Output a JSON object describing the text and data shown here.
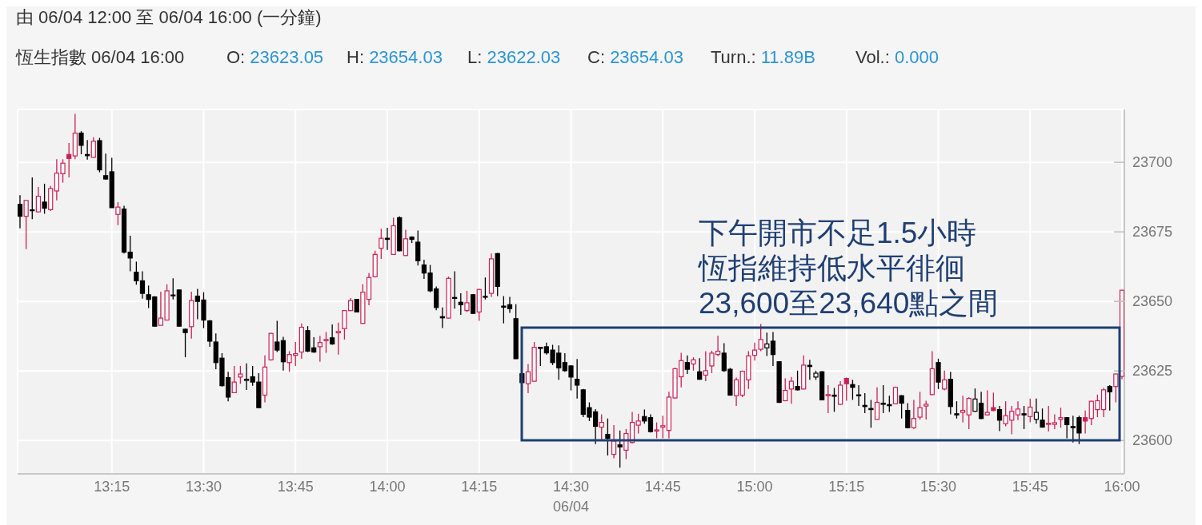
{
  "chart_data": {
    "type": "candlestick",
    "title": "由 06/04 12:00 至 06/04 16:00 (一分鐘)",
    "subtitle": "恆生指數 06/04 16:00",
    "xlabel": "06/04",
    "annotations": [
      "下午開市不足1.5小時恆指維持低水平徘徊23,600至23,640點之間",
      "O: 23623.05",
      "H: 23654.03",
      "L: 23622.03",
      "C: 23654.03",
      "Turn.: 11.89B",
      "Vol.: 0.000"
    ],
    "x": [
      13.0,
      13.0167,
      13.0333,
      13.05,
      13.0667,
      13.0833,
      13.1,
      13.1167,
      13.1333,
      13.15,
      13.1667,
      13.1833,
      13.2,
      13.2167,
      13.2333,
      13.25,
      13.2667,
      13.2833,
      13.3,
      13.3167,
      13.3333,
      13.35,
      13.3667,
      13.3833,
      13.4,
      13.4167,
      13.4333,
      13.45,
      13.4667,
      13.4833,
      13.5,
      13.5167,
      13.5333,
      13.55,
      13.5667,
      13.5833,
      13.6,
      13.6167,
      13.6333,
      13.65,
      13.6667,
      13.6833,
      13.7,
      13.7167,
      13.7333,
      13.75,
      13.7667,
      13.7833,
      13.8,
      13.8167,
      13.8333,
      13.85,
      13.8667,
      13.8833,
      13.9,
      13.9167,
      13.9333,
      13.95,
      13.9667,
      13.9833,
      14.0,
      14.0167,
      14.0333,
      14.05,
      14.0667,
      14.0833,
      14.1,
      14.1167,
      14.1333,
      14.15,
      14.1667,
      14.1833,
      14.2,
      14.2167,
      14.2333,
      14.25,
      14.2667,
      14.2833,
      14.3,
      14.3167,
      14.3333,
      14.35,
      14.3667,
      14.3833,
      14.4,
      14.4167,
      14.4333,
      14.45,
      14.4667,
      14.4833,
      14.5,
      14.5167,
      14.5333,
      14.55,
      14.5667,
      14.5833,
      14.6,
      14.6167,
      14.6333,
      14.65,
      14.6667,
      14.6833,
      14.7,
      14.7167,
      14.7333,
      14.75,
      14.7667,
      14.7833,
      14.8,
      14.8167,
      14.8333,
      14.85,
      14.8667,
      14.8833,
      14.9,
      14.9167,
      14.9333,
      14.95,
      14.9667,
      14.9833,
      15.0,
      15.0167,
      15.0333,
      15.05,
      15.0667,
      15.0833,
      15.1,
      15.1167,
      15.1333,
      15.15,
      15.1667,
      15.1833,
      15.2,
      15.2167,
      15.2333,
      15.25,
      15.2667,
      15.2833,
      15.3,
      15.3167,
      15.3333,
      15.35,
      15.3667,
      15.3833,
      15.4,
      15.4167,
      15.4333,
      15.45,
      15.4667,
      15.4833,
      15.5,
      15.5167,
      15.5333,
      15.55,
      15.5667,
      15.5833,
      15.6,
      15.6167,
      15.6333,
      15.65,
      15.6667,
      15.6833,
      15.7,
      15.7167,
      15.7333,
      15.75,
      15.7667,
      15.7833,
      15.8,
      15.8167,
      15.8333,
      15.85,
      15.8667,
      15.8833,
      15.9,
      15.9167,
      15.9333,
      15.95,
      15.9667,
      15.9833,
      16.0
    ],
    "ohlc": [
      [
        23684.9,
        23688.2,
        23676.3,
        23680.6
      ],
      [
        23680.6,
        23686.3,
        23668.8,
        23686.3
      ],
      [
        23682.9,
        23694.6,
        23679.6,
        23682.7
      ],
      [
        23682.2,
        23691.1,
        23682.0,
        23687.8
      ],
      [
        23685.7,
        23692.3,
        23681.5,
        23683.5
      ],
      [
        23683.0,
        23691.6,
        23682.5,
        23690.6
      ],
      [
        23689.7,
        23701.1,
        23686.3,
        23696.1
      ],
      [
        23695.9,
        23701.1,
        23692.7,
        23699.7
      ],
      [
        23702.8,
        23706.9,
        23694.6,
        23701.4
      ],
      [
        23702.3,
        23717.4,
        23701.1,
        23710.5
      ],
      [
        23710.5,
        23711.2,
        23702.9,
        23706.1
      ],
      [
        23702.8,
        23708.0,
        23701.0,
        23702.4
      ],
      [
        23701.8,
        23709.0,
        23701.6,
        23707.6
      ],
      [
        23707.8,
        23708.8,
        23696.4,
        23697.3
      ],
      [
        23695.2,
        23703.1,
        23693.7,
        23694.0
      ],
      [
        23696.6,
        23701.6,
        23683.7,
        23683.7
      ],
      [
        23681.3,
        23685.7,
        23677.4,
        23683.9
      ],
      [
        23683.2,
        23684.4,
        23667.2,
        23667.7
      ],
      [
        23667.7,
        23673.6,
        23660.8,
        23665.6
      ],
      [
        23660.5,
        23664.3,
        23656.0,
        23657.4
      ],
      [
        23657.4,
        23660.8,
        23651.0,
        23652.9
      ],
      [
        23652.4,
        23655.7,
        23647.6,
        23650.7
      ],
      [
        23651.6,
        23651.9,
        23640.9,
        23641.1
      ],
      [
        23641.4,
        23653.5,
        23641.4,
        23644.0
      ],
      [
        23643.3,
        23656.2,
        23643.3,
        23653.8
      ],
      [
        23652.3,
        23658.3,
        23650.7,
        23652.1
      ],
      [
        23654.1,
        23654.3,
        23640.9,
        23641.1
      ],
      [
        23640.0,
        23640.2,
        23629.9,
        23638.8
      ],
      [
        23640.9,
        23653.5,
        23636.6,
        23650.3
      ],
      [
        23651.9,
        23654.5,
        23643.6,
        23650.0
      ],
      [
        23650.5,
        23653.3,
        23640.4,
        23643.3
      ],
      [
        23643.0,
        23643.3,
        23633.7,
        23635.7
      ],
      [
        23635.4,
        23638.5,
        23625.6,
        23628.0
      ],
      [
        23629.6,
        23631.4,
        23619.4,
        23619.7
      ],
      [
        23622.6,
        23624.7,
        23614.1,
        23615.6
      ],
      [
        23617.2,
        23626.8,
        23617.2,
        23621.0
      ],
      [
        23622.8,
        23626.8,
        23620.4,
        23623.9
      ],
      [
        23621.6,
        23627.7,
        23618.2,
        23622.0
      ],
      [
        23622.9,
        23626.8,
        23619.7,
        23621.0
      ],
      [
        23621.0,
        23624.2,
        23611.8,
        23611.8
      ],
      [
        23616.3,
        23630.6,
        23613.7,
        23626.4
      ],
      [
        23629.0,
        23638.7,
        23628.7,
        23638.5
      ],
      [
        23635.4,
        23643.0,
        23631.8,
        23632.5
      ],
      [
        23635.9,
        23637.3,
        23625.1,
        23628.3
      ],
      [
        23628.0,
        23632.1,
        23624.7,
        23630.9
      ],
      [
        23630.6,
        23635.4,
        23626.8,
        23631.2
      ],
      [
        23631.8,
        23642.1,
        23629.4,
        23640.7
      ],
      [
        23639.5,
        23641.1,
        23631.8,
        23632.1
      ],
      [
        23633.3,
        23637.1,
        23631.5,
        23631.8
      ],
      [
        23633.7,
        23637.6,
        23628.3,
        23635.2
      ],
      [
        23635.9,
        23639.0,
        23631.5,
        23636.3
      ],
      [
        23636.9,
        23641.7,
        23634.4,
        23634.7
      ],
      [
        23638.7,
        23642.4,
        23630.9,
        23639.2
      ],
      [
        23640.2,
        23646.8,
        23636.3,
        23646.7
      ],
      [
        23646.7,
        23651.2,
        23646.5,
        23650.3
      ],
      [
        23650.7,
        23650.9,
        23646.0,
        23646.2
      ],
      [
        23642.1,
        23656.2,
        23641.9,
        23653.3
      ],
      [
        23650.7,
        23660.2,
        23648.6,
        23658.6
      ],
      [
        23658.9,
        23668.2,
        23658.6,
        23666.9
      ],
      [
        23669.1,
        23676.1,
        23665.3,
        23672.7
      ],
      [
        23672.7,
        23676.5,
        23668.5,
        23672.3
      ],
      [
        23666.9,
        23680.1,
        23666.7,
        23677.2
      ],
      [
        23680.1,
        23680.6,
        23668.0,
        23668.2
      ],
      [
        23666.5,
        23675.8,
        23666.3,
        23672.5
      ],
      [
        23673.1,
        23673.4,
        23671.0,
        23672.3
      ],
      [
        23671.3,
        23675.5,
        23662.9,
        23664.6
      ],
      [
        23663.1,
        23665.0,
        23658.1,
        23660.2
      ],
      [
        23660.2,
        23663.1,
        23653.3,
        23653.8
      ],
      [
        23654.5,
        23655.4,
        23646.8,
        23647.8
      ],
      [
        23644.5,
        23647.8,
        23640.4,
        23644.1
      ],
      [
        23644.0,
        23658.9,
        23643.8,
        23658.3
      ],
      [
        23651.4,
        23660.8,
        23647.4,
        23651.1
      ],
      [
        23649.7,
        23652.9,
        23645.2,
        23648.8
      ],
      [
        23646.7,
        23653.8,
        23646.2,
        23649.5
      ],
      [
        23652.4,
        23652.6,
        23645.5,
        23645.7
      ],
      [
        23646.2,
        23654.5,
        23643.0,
        23654.3
      ],
      [
        23651.8,
        23658.6,
        23650.7,
        23651.5
      ],
      [
        23652.9,
        23667.2,
        23651.6,
        23665.3
      ],
      [
        23667.2,
        23667.4,
        23651.9,
        23655.4
      ],
      [
        23648.3,
        23651.9,
        23642.1,
        23647.9
      ],
      [
        23648.8,
        23651.6,
        23645.9,
        23647.4
      ],
      [
        23643.8,
        23649.0,
        23629.3,
        23629.4
      ],
      [
        23624.0,
        23624.7,
        23619.9,
        23620.8
      ],
      [
        23620.4,
        23627.5,
        23617.0,
        23624.7
      ],
      [
        23621.3,
        23635.4,
        23621.0,
        23633.5
      ],
      [
        23633.5,
        23633.7,
        23626.8,
        23633.1
      ],
      [
        23633.7,
        23635.2,
        23630.9,
        23631.5
      ],
      [
        23632.5,
        23634.4,
        23627.1,
        23628.0
      ],
      [
        23631.4,
        23634.2,
        23621.8,
        23626.1
      ],
      [
        23628.0,
        23631.4,
        23624.7,
        23625.1
      ],
      [
        23626.8,
        23627.1,
        23618.0,
        23622.8
      ],
      [
        23622.0,
        23629.3,
        23615.1,
        23619.9
      ],
      [
        23618.2,
        23618.5,
        23608.4,
        23609.4
      ],
      [
        23611.8,
        23613.7,
        23607.0,
        23608.4
      ],
      [
        23610.3,
        23611.3,
        23598.7,
        23605.1
      ],
      [
        23604.8,
        23609.4,
        23600.3,
        23606.5
      ],
      [
        23602.2,
        23607.9,
        23594.6,
        23600.8
      ],
      [
        23595.0,
        23605.5,
        23593.6,
        23599.8
      ],
      [
        23598.4,
        23603.6,
        23590.2,
        23597.7
      ],
      [
        23596.5,
        23604.1,
        23593.3,
        23602.5
      ],
      [
        23599.3,
        23610.3,
        23598.9,
        23606.5
      ],
      [
        23605.5,
        23609.6,
        23602.5,
        23607.0
      ],
      [
        23608.6,
        23611.1,
        23606.0,
        23607.0
      ],
      [
        23608.2,
        23609.4,
        23602.9,
        23603.2
      ],
      [
        23603.4,
        23606.5,
        23600.8,
        23603.8
      ],
      [
        23604.8,
        23608.9,
        23600.8,
        23605.3
      ],
      [
        23603.6,
        23617.5,
        23600.8,
        23615.6
      ],
      [
        23615.3,
        23626.1,
        23615.1,
        23625.8
      ],
      [
        23622.9,
        23631.5,
        23619.1,
        23628.7
      ],
      [
        23628.0,
        23630.6,
        23623.9,
        23625.6
      ],
      [
        23627.5,
        23629.9,
        23625.1,
        23629.0
      ],
      [
        23624.7,
        23629.6,
        23621.8,
        23622.0
      ],
      [
        23623.5,
        23632.1,
        23621.3,
        23625.1
      ],
      [
        23626.8,
        23632.3,
        23624.2,
        23631.4
      ],
      [
        23630.9,
        23637.6,
        23630.4,
        23632.1
      ],
      [
        23631.4,
        23635.0,
        23624.7,
        23625.1
      ],
      [
        23625.6,
        23626.1,
        23616.1,
        23616.3
      ],
      [
        23616.1,
        23622.6,
        23612.4,
        23621.8
      ],
      [
        23616.3,
        23625.1,
        23615.6,
        23624.9
      ],
      [
        23621.8,
        23632.1,
        23618.5,
        23630.4
      ],
      [
        23630.6,
        23635.2,
        23628.7,
        23632.5
      ],
      [
        23632.8,
        23641.9,
        23632.1,
        23636.3
      ],
      [
        23633.3,
        23638.8,
        23630.4,
        23634.7
      ],
      [
        23635.7,
        23639.0,
        23626.8,
        23630.9
      ],
      [
        23628.3,
        23628.5,
        23613.5,
        23613.7
      ],
      [
        23614.3,
        23622.3,
        23614.1,
        23618.0
      ],
      [
        23618.5,
        23622.8,
        23613.2,
        23621.3
      ],
      [
        23619.4,
        23625.1,
        23618.0,
        23618.2
      ],
      [
        23618.5,
        23630.6,
        23618.3,
        23627.1
      ],
      [
        23627.0,
        23629.0,
        23621.8,
        23626.6
      ],
      [
        23622.8,
        23625.1,
        23621.8,
        23624.2
      ],
      [
        23624.7,
        23624.9,
        23614.4,
        23614.6
      ],
      [
        23616.1,
        23619.9,
        23609.8,
        23616.5
      ],
      [
        23616.3,
        23618.9,
        23610.3,
        23615.9
      ],
      [
        23613.0,
        23621.3,
        23612.8,
        23619.9
      ],
      [
        23622.3,
        23622.6,
        23614.3,
        23620.4
      ],
      [
        23620.1,
        23621.8,
        23614.6,
        23619.1
      ],
      [
        23616.4,
        23619.9,
        23612.4,
        23616.1
      ],
      [
        23612.6,
        23617.0,
        23609.8,
        23612.2
      ],
      [
        23611.5,
        23614.6,
        23604.6,
        23611.1
      ],
      [
        23607.6,
        23619.1,
        23607.5,
        23613.7
      ],
      [
        23613.4,
        23619.9,
        23609.8,
        23613.0
      ],
      [
        23612.9,
        23616.1,
        23610.3,
        23612.5
      ],
      [
        23613.2,
        23619.4,
        23613.0,
        23619.1
      ],
      [
        23616.1,
        23616.3,
        23607.9,
        23613.4
      ],
      [
        23610.8,
        23613.4,
        23604.4,
        23604.6
      ],
      [
        23604.6,
        23614.6,
        23604.1,
        23607.9
      ],
      [
        23608.4,
        23617.5,
        23607.5,
        23611.8
      ],
      [
        23612.4,
        23614.3,
        23607.5,
        23613.0
      ],
      [
        23616.5,
        23632.1,
        23616.3,
        23625.8
      ],
      [
        23628.0,
        23629.4,
        23618.5,
        23621.0
      ],
      [
        23618.5,
        23625.1,
        23618.0,
        23621.8
      ],
      [
        23622.0,
        23624.7,
        23609.4,
        23612.2
      ],
      [
        23609.6,
        23614.1,
        23607.9,
        23609.2
      ],
      [
        23610.1,
        23616.1,
        23606.5,
        23610.8
      ],
      [
        23609.2,
        23615.6,
        23604.1,
        23615.1
      ],
      [
        23610.5,
        23618.7,
        23610.3,
        23614.9
      ],
      [
        23613.4,
        23617.5,
        23607.7,
        23607.9
      ],
      [
        23609.2,
        23618.0,
        23608.9,
        23610.1
      ],
      [
        23611.8,
        23617.2,
        23610.5,
        23610.8
      ],
      [
        23611.1,
        23612.4,
        23603.4,
        23607.3
      ],
      [
        23606.0,
        23614.1,
        23605.1,
        23608.9
      ],
      [
        23607.3,
        23612.4,
        23602.2,
        23610.5
      ],
      [
        23609.2,
        23614.1,
        23607.3,
        23611.3
      ],
      [
        23609.6,
        23612.4,
        23604.1,
        23609.2
      ],
      [
        23608.6,
        23615.1,
        23606.5,
        23612.0
      ],
      [
        23607.6,
        23615.1,
        23606.0,
        23610.1
      ],
      [
        23607.3,
        23611.5,
        23604.6,
        23604.8
      ],
      [
        23605.8,
        23612.4,
        23603.2,
        23606.2
      ],
      [
        23605.8,
        23609.4,
        23604.1,
        23606.4
      ],
      [
        23607.6,
        23611.8,
        23604.6,
        23608.2
      ],
      [
        23608.2,
        23608.4,
        23600.8,
        23605.7
      ],
      [
        23605.0,
        23608.9,
        23599.3,
        23604.6
      ],
      [
        23608.2,
        23608.9,
        23598.7,
        23602.7
      ],
      [
        23608.2,
        23610.8,
        23602.5,
        23607.0
      ],
      [
        23607.9,
        23614.3,
        23605.5,
        23614.1
      ],
      [
        23611.1,
        23616.5,
        23608.4,
        23614.3
      ],
      [
        23611.1,
        23618.9,
        23608.4,
        23618.2
      ],
      [
        23619.4,
        23619.9,
        23610.8,
        23617.5
      ],
      [
        23619.4,
        23624.1,
        23613.7,
        23623.9
      ],
      [
        23623.05,
        23654.03,
        23622.03,
        23654.03
      ]
    ],
    "colors": [
      "#000000",
      "#cc1f55",
      "#000000",
      "#cc1f55",
      "#000000",
      "#cc1f55",
      "#cc1f55",
      "#cc1f55",
      "#cc1f55",
      "#cc1f55",
      "#000000",
      "#000000",
      "#cc1f55",
      "#000000",
      "#000000",
      "#000000",
      "#cc1f55",
      "#000000",
      "#000000",
      "#000000",
      "#000000",
      "#000000",
      "#000000",
      "#cc1f55",
      "#cc1f55",
      "#000000",
      "#000000",
      "#000000",
      "#cc1f55",
      "#000000",
      "#000000",
      "#000000",
      "#000000",
      "#000000",
      "#000000",
      "#cc1f55",
      "#cc1f55",
      "#000000",
      "#000000",
      "#000000",
      "#cc1f55",
      "#cc1f55",
      "#000000",
      "#000000",
      "#cc1f55",
      "#cc1f55",
      "#cc1f55",
      "#000000",
      "#000000",
      "#cc1f55",
      "#cc1f55",
      "#000000",
      "#cc1f55",
      "#cc1f55",
      "#cc1f55",
      "#000000",
      "#cc1f55",
      "#cc1f55",
      "#cc1f55",
      "#cc1f55",
      "#000000",
      "#cc1f55",
      "#000000",
      "#cc1f55",
      "#000000",
      "#000000",
      "#000000",
      "#000000",
      "#000000",
      "#000000",
      "#cc1f55",
      "#000000",
      "#000000",
      "#cc1f55",
      "#000000",
      "#cc1f55",
      "#000000",
      "#cc1f55",
      "#000000",
      "#000000",
      "#000000",
      "#000000",
      "#000000",
      "#cc1f55",
      "#cc1f55",
      "#000000",
      "#000000",
      "#000000",
      "#000000",
      "#000000",
      "#000000",
      "#000000",
      "#000000",
      "#000000",
      "#000000",
      "#cc1f55",
      "#000000",
      "#cc1f55",
      "#000000",
      "#cc1f55",
      "#cc1f55",
      "#cc1f55",
      "#000000",
      "#000000",
      "#cc1f55",
      "#cc1f55",
      "#cc1f55",
      "#cc1f55",
      "#cc1f55",
      "#000000",
      "#cc1f55",
      "#000000",
      "#cc1f55",
      "#cc1f55",
      "#cc1f55",
      "#000000",
      "#000000",
      "#cc1f55",
      "#cc1f55",
      "#cc1f55",
      "#cc1f55",
      "#cc1f55",
      "#000000",
      "#000000",
      "#000000",
      "#cc1f55",
      "#cc1f55",
      "#000000",
      "#cc1f55",
      "#000000",
      "#000000",
      "#000000",
      "#cc1f55",
      "#000000",
      "#cc1f55",
      "#cc1f55",
      "#000000",
      "#000000",
      "#000000",
      "#000000",
      "#cc1f55",
      "#000000",
      "#000000",
      "#cc1f55",
      "#000000",
      "#000000",
      "#cc1f55",
      "#cc1f55",
      "#cc1f55",
      "#cc1f55",
      "#000000",
      "#cc1f55",
      "#000000",
      "#000000",
      "#cc1f55",
      "#cc1f55",
      "#000000",
      "#000000",
      "#cc1f55",
      "#cc1f55",
      "#000000",
      "#cc1f55",
      "#cc1f55",
      "#cc1f55",
      "#000000",
      "#cc1f55",
      "#000000",
      "#000000",
      "#cc1f55",
      "#cc1f55",
      "#cc1f55",
      "#000000",
      "#000000",
      "#000000",
      "#cc1f55",
      "#cc1f55",
      "#cc1f55",
      "#cc1f55",
      "#000000",
      "#cc1f55",
      "#cc1f55"
    ],
    "xlim": [
      12.9935,
      16.0065
    ],
    "xticks": [
      {
        "value": 13.25,
        "label": "13:15"
      },
      {
        "value": 13.5,
        "label": "13:30"
      },
      {
        "value": 13.75,
        "label": "13:45"
      },
      {
        "value": 14,
        "label": "14:00"
      },
      {
        "value": 14.25,
        "label": "14:15"
      },
      {
        "value": 14.5,
        "label": "14:30"
      },
      {
        "value": 14.75,
        "label": "14:45"
      },
      {
        "value": 15,
        "label": "15:00"
      },
      {
        "value": 15.25,
        "label": "15:15"
      },
      {
        "value": 15.5,
        "label": "15:30"
      },
      {
        "value": 15.75,
        "label": "15:45"
      },
      {
        "value": 16,
        "label": "16:00"
      }
    ],
    "ylim": [
      23588,
      23719
    ],
    "yticks": [
      23600,
      23625,
      23650,
      23675,
      23700
    ],
    "grid": true
  }
}
